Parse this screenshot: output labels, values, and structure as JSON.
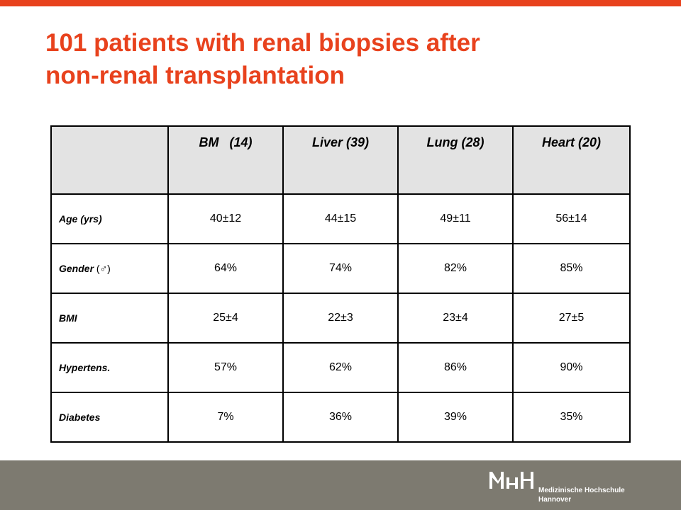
{
  "title": {
    "line1": "101 patients with renal biopsies after",
    "line2": "non-renal transplantation"
  },
  "table": {
    "headers": [
      "",
      "BM   (14)",
      "Liver (39)",
      "Lung (28)",
      "Heart (20)"
    ],
    "rows": [
      {
        "label": "Age (yrs)",
        "label_suffix": "",
        "values": [
          "40±12",
          "44±15",
          "49±11",
          "56±14"
        ]
      },
      {
        "label": "Gender ",
        "label_suffix": "(♂)",
        "values": [
          "64%",
          "74%",
          "82%",
          "85%"
        ]
      },
      {
        "label": "BMI",
        "label_suffix": "",
        "values": [
          "25±4",
          "22±3",
          "23±4",
          "27±5"
        ]
      },
      {
        "label": "Hypertens.",
        "label_suffix": "",
        "values": [
          "57%",
          "62%",
          "86%",
          "90%"
        ]
      },
      {
        "label": "Diabetes",
        "label_suffix": "",
        "values": [
          "7%",
          "36%",
          "39%",
          "35%"
        ]
      }
    ]
  },
  "logo": {
    "mark": "MHH",
    "line1": "Medizinische Hochschule",
    "line2": "Hannover"
  },
  "colors": {
    "accent": "#e8421d",
    "footer": "#7d7a70",
    "header_fill": "#e3e3e3"
  }
}
